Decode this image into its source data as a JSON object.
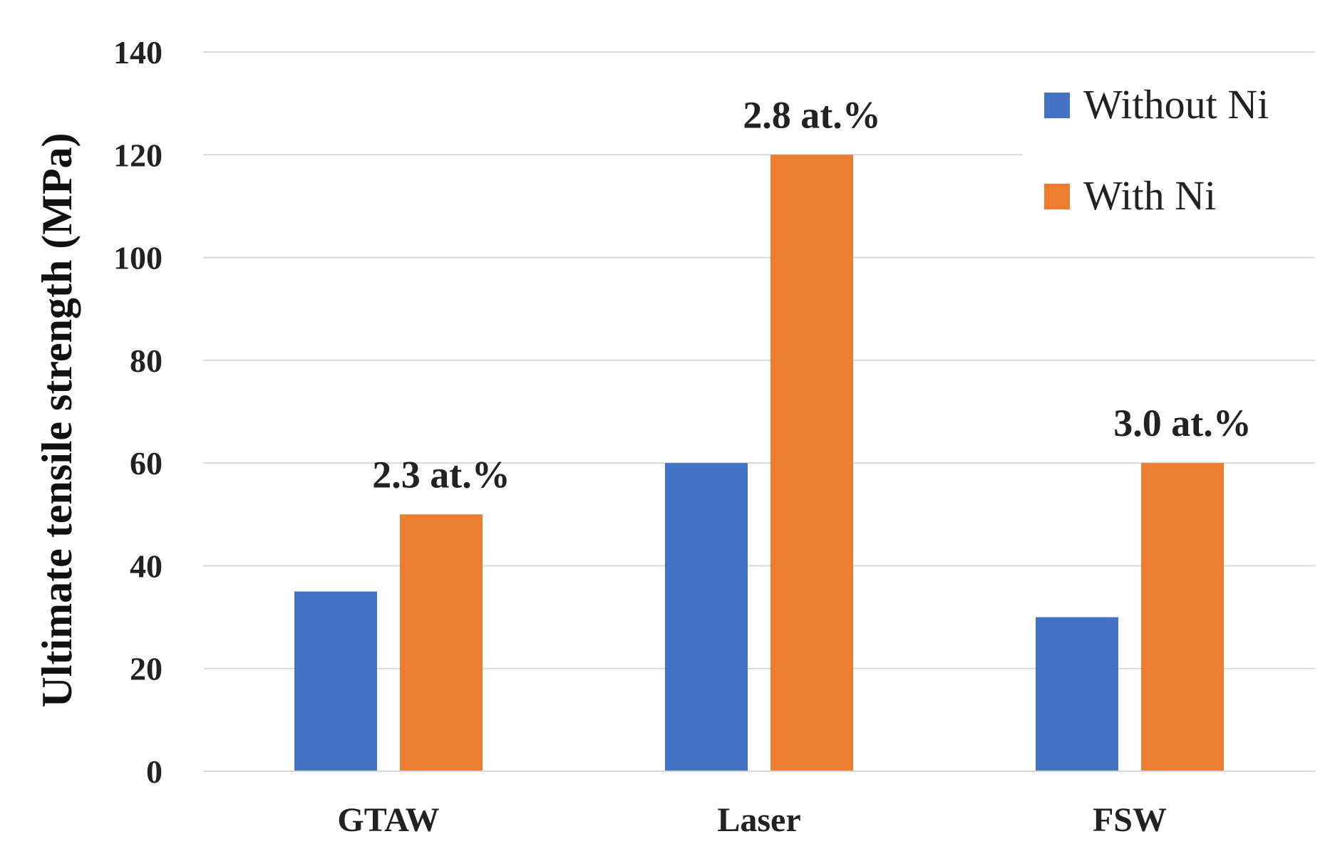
{
  "chart_data": {
    "type": "bar",
    "title": "",
    "xlabel": "",
    "ylabel": "Ultimate tensile strength (MPa)",
    "ylim": [
      0,
      140
    ],
    "yticks": [
      0,
      20,
      40,
      60,
      80,
      100,
      120,
      140
    ],
    "grid": true,
    "legend_position": "top-right",
    "categories": [
      "GTAW",
      "Laser",
      "FSW"
    ],
    "series": [
      {
        "name": "Without Ni",
        "color": "#4472C4",
        "values": [
          35,
          60,
          30
        ]
      },
      {
        "name": "With Ni",
        "color": "#ED7D31",
        "values": [
          50,
          120,
          60
        ]
      }
    ],
    "annotations": [
      {
        "category": "GTAW",
        "series": "With Ni",
        "text": "2.3 at.%"
      },
      {
        "category": "Laser",
        "series": "With Ni",
        "text": "2.8 at.%"
      },
      {
        "category": "FSW",
        "series": "With Ni",
        "text": "3.0 at.%"
      }
    ]
  }
}
